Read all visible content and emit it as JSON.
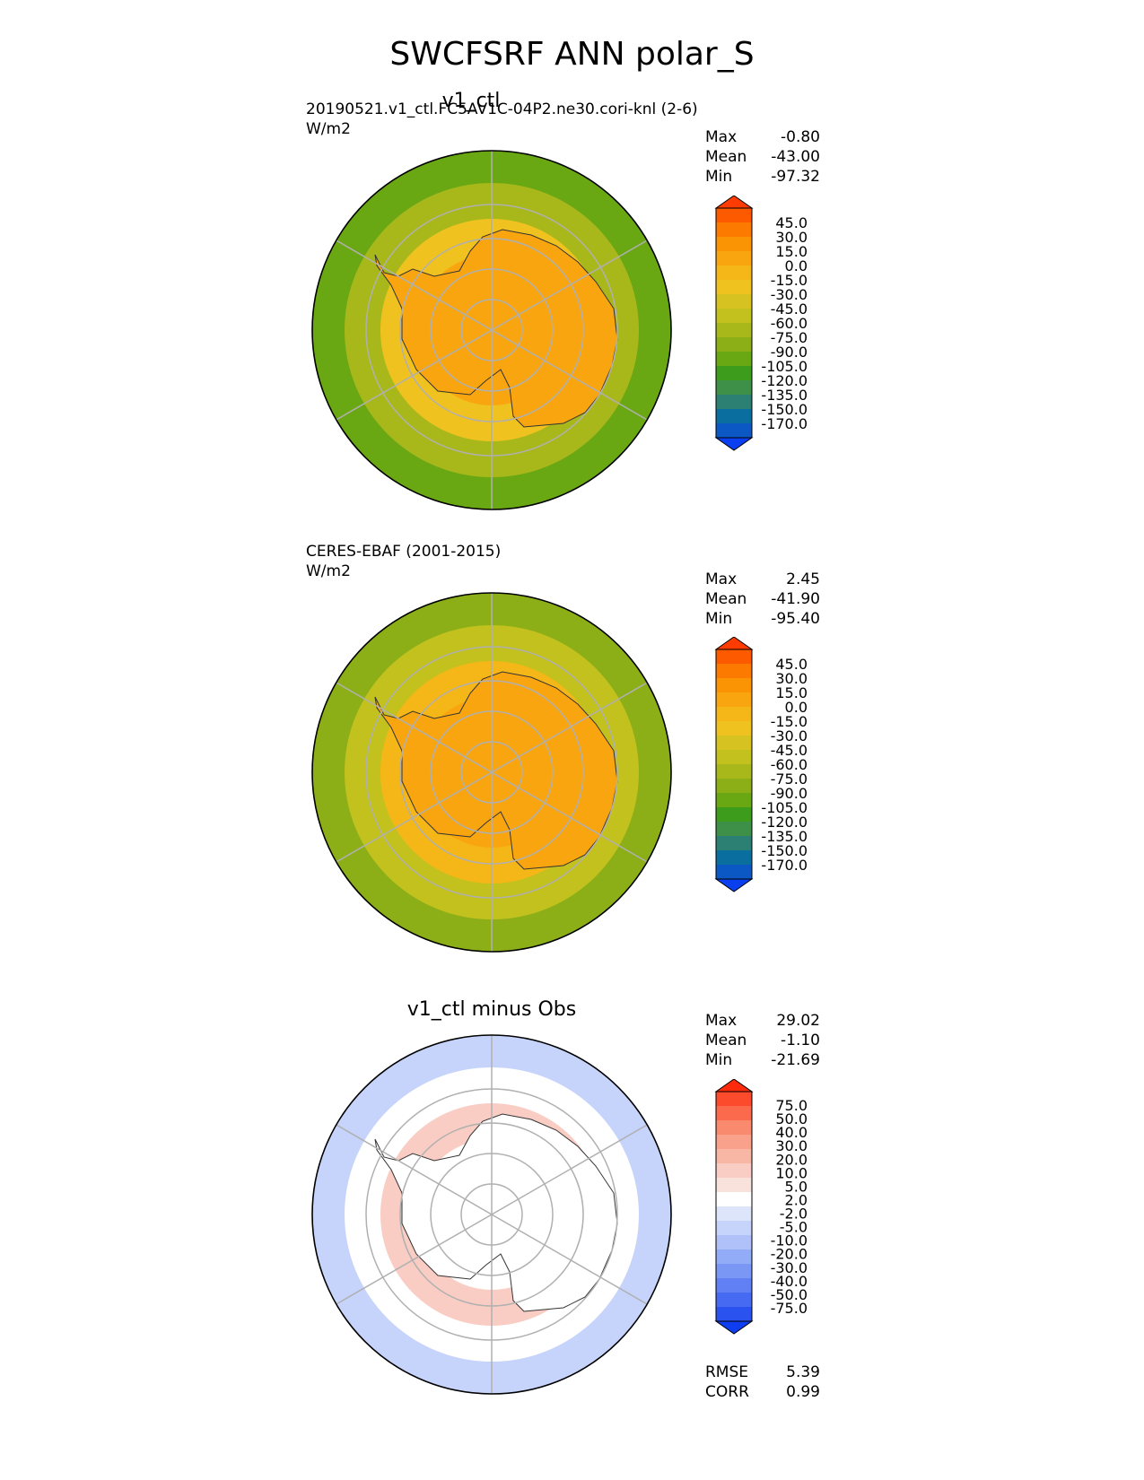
{
  "figure_title": "SWCFSRF ANN polar_S",
  "panels": [
    {
      "title": "v1_ctl",
      "case_label": "20190521.v1_ctl.FC5AV1C-04P2.ne30.cori-knl (2-6)",
      "units": "W/m2",
      "stats": [
        {
          "label": "Max",
          "value": "-0.80"
        },
        {
          "label": "Mean",
          "value": "-43.00"
        },
        {
          "label": "Min",
          "value": "-97.32"
        }
      ]
    },
    {
      "title": "",
      "case_label": "CERES-EBAF (2001-2015)",
      "units": "W/m2",
      "stats": [
        {
          "label": "Max",
          "value": "2.45"
        },
        {
          "label": "Mean",
          "value": "-41.90"
        },
        {
          "label": "Min",
          "value": "-95.40"
        }
      ]
    },
    {
      "title": "v1_ctl minus Obs",
      "case_label": "",
      "units": "",
      "stats": [
        {
          "label": "Max",
          "value": "29.02"
        },
        {
          "label": "Mean",
          "value": "-1.10"
        },
        {
          "label": "Min",
          "value": "-21.69"
        }
      ],
      "metrics": [
        {
          "label": "RMSE",
          "value": "5.39"
        },
        {
          "label": "CORR",
          "value": "0.99"
        }
      ]
    }
  ],
  "chart_data": [
    {
      "type": "heatmap",
      "projection": "south polar stereographic",
      "title": "v1_ctl",
      "units": "W/m2",
      "max": -0.8,
      "mean": -43.0,
      "min": -97.32,
      "colorbar": {
        "levels": [
          "45.0",
          "30.0",
          "15.0",
          "0.0",
          "-15.0",
          "-30.0",
          "-45.0",
          "-60.0",
          "-75.0",
          "-90.0",
          "-105.0",
          "-120.0",
          "-135.0",
          "-150.0",
          "-170.0"
        ],
        "colors": [
          "#fe3b00",
          "#fd5a00",
          "#fc7a00",
          "#fb9405",
          "#f9a50f",
          "#f5b717",
          "#f0c21f",
          "#d6c321",
          "#c2c11e",
          "#a8b81a",
          "#8caf18",
          "#6aa813",
          "#3e9c1c",
          "#3e8f48",
          "#2b8073",
          "#0a6f9e",
          "#0b58c4",
          "#0a3ff0"
        ],
        "extend": "both"
      },
      "regions": [
        {
          "ring": "Antarctic interior",
          "value_range": [
            -15,
            0
          ],
          "color": "#f9a50f"
        },
        {
          "ring": "Antarctic coast / sea-ice edge",
          "value_range": [
            -45,
            -30
          ],
          "color": "#f0c21f"
        },
        {
          "ring": "Southern Ocean 60S",
          "value_range": [
            -75,
            -60
          ],
          "color": "#a8b81a"
        },
        {
          "ring": "Outer ocean 50S",
          "value_range": [
            -105,
            -90
          ],
          "color": "#6aa813"
        }
      ]
    },
    {
      "type": "heatmap",
      "projection": "south polar stereographic",
      "title": "CERES-EBAF (2001-2015)",
      "units": "W/m2",
      "max": 2.45,
      "mean": -41.9,
      "min": -95.4,
      "colorbar": {
        "levels": [
          "45.0",
          "30.0",
          "15.0",
          "0.0",
          "-15.0",
          "-30.0",
          "-45.0",
          "-60.0",
          "-75.0",
          "-90.0",
          "-105.0",
          "-120.0",
          "-135.0",
          "-150.0",
          "-170.0"
        ],
        "colors": [
          "#fe3b00",
          "#fd5a00",
          "#fc7a00",
          "#fb9405",
          "#f9a50f",
          "#f5b717",
          "#f0c21f",
          "#d6c321",
          "#c2c11e",
          "#a8b81a",
          "#8caf18",
          "#6aa813",
          "#3e9c1c",
          "#3e8f48",
          "#2b8073",
          "#0a6f9e",
          "#0b58c4",
          "#0a3ff0"
        ],
        "extend": "both"
      },
      "regions": [
        {
          "ring": "Antarctic interior",
          "value_range": [
            -15,
            0
          ],
          "color": "#f9a50f"
        },
        {
          "ring": "Antarctic coast / sea-ice edge",
          "value_range": [
            -45,
            -30
          ],
          "color": "#f5b717"
        },
        {
          "ring": "Southern Ocean 60S",
          "value_range": [
            -75,
            -60
          ],
          "color": "#c2c11e"
        },
        {
          "ring": "Outer ocean 50S",
          "value_range": [
            -90,
            -75
          ],
          "color": "#8caf18"
        }
      ]
    },
    {
      "type": "heatmap",
      "projection": "south polar stereographic",
      "title": "v1_ctl minus Obs",
      "max": 29.02,
      "mean": -1.1,
      "min": -21.69,
      "rmse": 5.39,
      "corr": 0.99,
      "colorbar": {
        "levels": [
          "75.0",
          "50.0",
          "40.0",
          "30.0",
          "20.0",
          "10.0",
          "5.0",
          "2.0",
          "-2.0",
          "-5.0",
          "-10.0",
          "-20.0",
          "-30.0",
          "-40.0",
          "-50.0",
          "-75.0"
        ],
        "colors": [
          "#fd2a0c",
          "#fc4a2c",
          "#fb6a4d",
          "#fa8a6d",
          "#f9a18a",
          "#f8b6a5",
          "#f9cdc3",
          "#fae2dc",
          "#ffffff",
          "#dde5fb",
          "#c6d3fa",
          "#afc1f8",
          "#93acf7",
          "#7a97f5",
          "#6080f3",
          "#466af1",
          "#2a52ee",
          "#0f3df0"
        ],
        "extend": "both"
      },
      "regions": [
        {
          "ring": "Antarctic interior",
          "value_range": [
            -2,
            2
          ],
          "color": "#ffffff"
        },
        {
          "ring": "Antarctic coast",
          "value_range": [
            5,
            20
          ],
          "color": "#f9cdc3"
        },
        {
          "ring": "Southern Ocean 60S",
          "value_range": [
            -2,
            2
          ],
          "color": "#ffffff"
        },
        {
          "ring": "Outer ocean 50S",
          "value_range": [
            -10,
            -5
          ],
          "color": "#c6d3fa"
        }
      ]
    }
  ]
}
